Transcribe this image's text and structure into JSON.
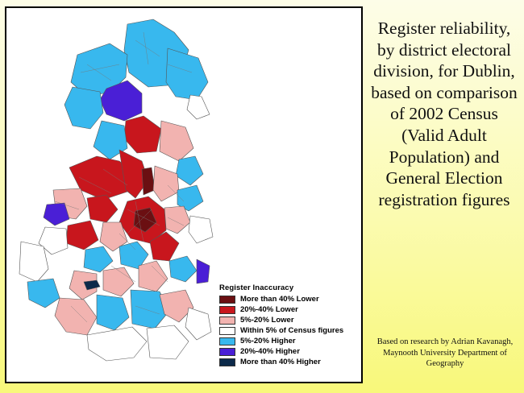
{
  "title": "Register reliability, by district electoral division, for Dublin, based on comparison of 2002 Census (Valid Adult Population) and General Election registration figures",
  "credit": "Based on research by Adrian Kavanagh, Maynooth University Department of Geography",
  "legend": {
    "title": "Register Inaccuracy",
    "items": [
      {
        "label": "More than 40% Lower",
        "color": "#6b0f12"
      },
      {
        "label": "20%-40% Lower",
        "color": "#c8161d"
      },
      {
        "label": "5%-20% Lower",
        "color": "#f2b3b0"
      },
      {
        "label": "Within 5% of Census figures",
        "color": "#ffffff"
      },
      {
        "label": "5%-20% Higher",
        "color": "#38b8ee"
      },
      {
        "label": "20%-40% Higher",
        "color": "#4a1fd6"
      },
      {
        "label": "More than 40% Higher",
        "color": "#0c2a4a"
      }
    ]
  }
}
